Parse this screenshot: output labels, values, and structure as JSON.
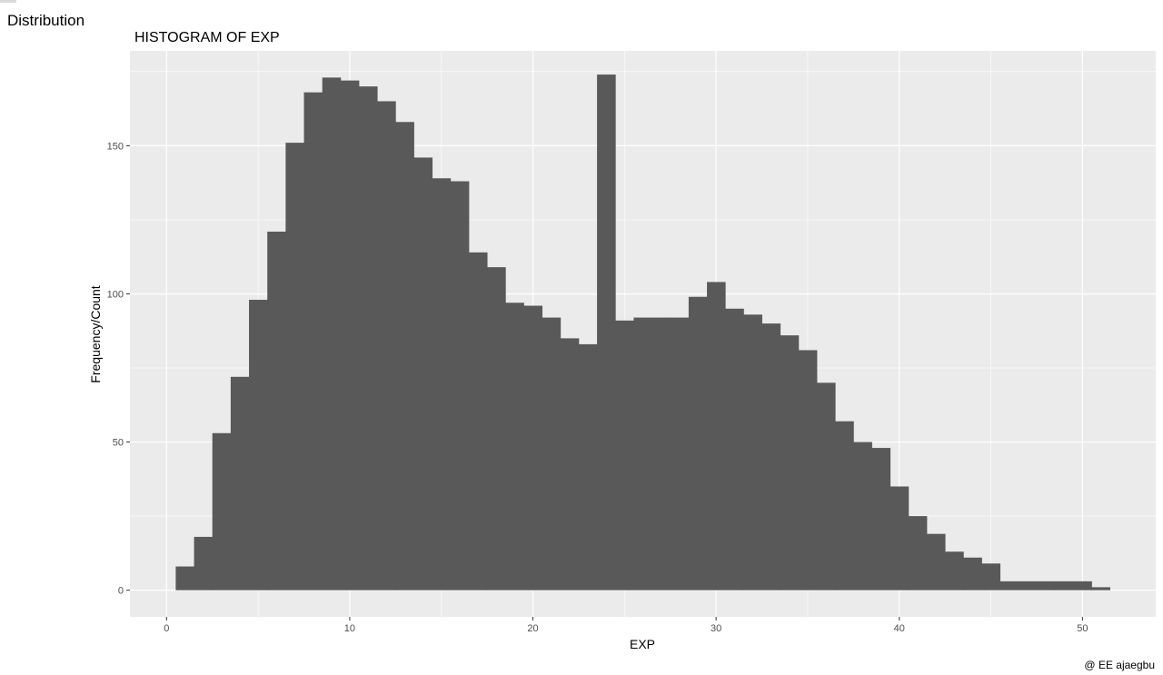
{
  "page": {
    "heading": "Distribution"
  },
  "chart_data": {
    "type": "bar",
    "title": "HISTOGRAM OF EXP",
    "xlabel": "EXP",
    "ylabel": "Frequency/Count",
    "caption": "@ EE ajaegbu",
    "xlim": [
      -2,
      54
    ],
    "ylim": [
      -9,
      182
    ],
    "xticks": [
      0,
      10,
      20,
      30,
      40,
      50
    ],
    "yticks": [
      0,
      50,
      100,
      150
    ],
    "bin_width": 1.0,
    "bin_start": 0.5,
    "values": [
      8,
      18,
      53,
      72,
      98,
      121,
      151,
      168,
      173,
      172,
      170,
      165,
      158,
      146,
      139,
      138,
      114,
      109,
      97,
      96,
      92,
      85,
      83,
      174,
      91,
      92,
      92,
      92,
      99,
      104,
      95,
      93,
      90,
      86,
      81,
      70,
      57,
      50,
      48,
      35,
      25,
      19,
      13,
      11,
      9,
      3,
      3,
      3,
      3,
      3,
      1
    ],
    "bar_color": "#595959",
    "panel_color": "#ebebeb",
    "grid": true
  }
}
